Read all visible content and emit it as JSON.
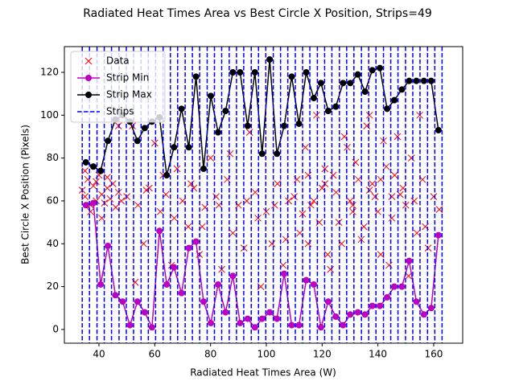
{
  "chart_data": {
    "type": "scatter",
    "title": "Radiated Heat Times Area vs Best Circle X Position, Strips=49",
    "x_label": "Radiated Heat Times Area (W)",
    "y_label": "Best Circle X Position (Pixels)",
    "xlim": [
      27.6,
      170.4
    ],
    "ylim": [
      -6.4,
      132
    ],
    "xticks": [
      40,
      60,
      80,
      100,
      120,
      140,
      160
    ],
    "yticks": [
      0,
      20,
      40,
      60,
      80,
      100,
      120
    ],
    "legend": "upper left",
    "series": [
      {
        "name": "Data",
        "color": "#ff0000",
        "marker": "x",
        "line": "none",
        "x": [
          34,
          35,
          36,
          37,
          38,
          39,
          40,
          41,
          42,
          43,
          44,
          45,
          46,
          47,
          48,
          35,
          37,
          39,
          41,
          43,
          50,
          52,
          54,
          56,
          58,
          60,
          62,
          64,
          66,
          68,
          70,
          72,
          74,
          76,
          78,
          80,
          82,
          84,
          86,
          88,
          90,
          92,
          94,
          96,
          98,
          100,
          102,
          104,
          106,
          108,
          110,
          112,
          114,
          116,
          118,
          120,
          122,
          124,
          126,
          128,
          130,
          132,
          134,
          136,
          138,
          140,
          142,
          144,
          146,
          148,
          150,
          152,
          154,
          156,
          158,
          160,
          162,
          119,
          121,
          123,
          125,
          127,
          129,
          131,
          133,
          135,
          137,
          139,
          141,
          143,
          145,
          147,
          149,
          151,
          153,
          155,
          157,
          117,
          115,
          113,
          47,
          53,
          57,
          63,
          67,
          73,
          77,
          83,
          87,
          93,
          97,
          103,
          107,
          111,
          115,
          121,
          131,
          137,
          141,
          145
        ],
        "values": [
          65,
          62,
          70,
          58,
          67,
          60,
          72,
          63,
          59,
          66,
          61,
          68,
          57,
          64,
          60,
          74,
          55,
          69,
          52,
          71,
          62,
          95,
          58,
          40,
          66,
          87,
          55,
          63,
          30,
          75,
          60,
          48,
          66,
          35,
          57,
          80,
          62,
          28,
          70,
          45,
          58,
          38,
          92,
          64,
          20,
          55,
          40,
          68,
          30,
          60,
          62,
          45,
          85,
          58,
          100,
          66,
          35,
          72,
          50,
          90,
          60,
          78,
          42,
          95,
          68,
          55,
          88,
          30,
          72,
          63,
          58,
          80,
          45,
          70,
          38,
          62,
          56,
          50,
          75,
          28,
          64,
          40,
          85,
          55,
          70,
          48,
          100,
          62,
          35,
          76,
          52,
          90,
          66,
          25,
          60,
          100,
          48,
          60,
          72,
          54,
          95,
          22,
          65,
          72,
          52,
          68,
          48,
          58,
          82,
          60,
          52,
          58,
          42,
          70,
          40,
          68,
          58,
          65,
          70,
          62
        ]
      },
      {
        "name": "Strip Min",
        "color": "#bf00bf",
        "marker": "o",
        "line": "solid",
        "x": [
          35.3,
          38.0,
          40.6,
          43.2,
          45.9,
          48.5,
          51.1,
          53.8,
          56.4,
          59.0,
          61.7,
          64.3,
          66.9,
          69.6,
          72.2,
          74.8,
          77.5,
          80.1,
          82.7,
          85.4,
          88.0,
          90.6,
          93.3,
          95.9,
          98.5,
          101.2,
          103.8,
          106.4,
          109.1,
          111.7,
          114.3,
          117.0,
          119.6,
          122.2,
          124.9,
          127.5,
          130.1,
          132.8,
          135.4,
          138.0,
          140.7,
          143.3,
          145.9,
          148.6,
          151.2,
          153.8,
          156.5,
          159.1,
          161.7
        ],
        "values": [
          58,
          59,
          21,
          39,
          16,
          13,
          2,
          13,
          8,
          1,
          46,
          21,
          29,
          17,
          38,
          41,
          13,
          3,
          21,
          8,
          25,
          3,
          5,
          1,
          5,
          8,
          5,
          26,
          2,
          2,
          23,
          21,
          1,
          13,
          6,
          2,
          7,
          8,
          7,
          11,
          11,
          15,
          20,
          20,
          32,
          13,
          7,
          10,
          44
        ]
      },
      {
        "name": "Strip Max",
        "color": "#000000",
        "marker": "o",
        "line": "solid",
        "x": [
          35.3,
          38.0,
          40.6,
          43.2,
          45.9,
          48.5,
          51.1,
          53.8,
          56.4,
          59.0,
          61.7,
          64.3,
          66.9,
          69.6,
          72.2,
          74.8,
          77.5,
          80.1,
          82.7,
          85.4,
          88.0,
          90.6,
          93.3,
          95.9,
          98.5,
          101.2,
          103.8,
          106.4,
          109.1,
          111.7,
          114.3,
          117.0,
          119.6,
          122.2,
          124.9,
          127.5,
          130.1,
          132.8,
          135.4,
          138.0,
          140.7,
          143.3,
          145.9,
          148.6,
          151.2,
          153.8,
          156.5,
          159.1,
          161.7
        ],
        "values": [
          78,
          76,
          74,
          88,
          98,
          100,
          97,
          88,
          94,
          97,
          99,
          72,
          85,
          103,
          85,
          118,
          75,
          109,
          92,
          102,
          120,
          120,
          95,
          120,
          82,
          126,
          82,
          95,
          118,
          96,
          120,
          108,
          115,
          102,
          104,
          115,
          115,
          119,
          111,
          121,
          122,
          103,
          107,
          112,
          116,
          116,
          116,
          116,
          93
        ]
      },
      {
        "name": "Strips",
        "color": "#0000ff",
        "marker": "none",
        "line": "dashed",
        "vertical": true,
        "x": [
          34.0,
          36.6,
          39.3,
          41.9,
          44.5,
          47.2,
          49.8,
          52.4,
          55.1,
          57.7,
          60.3,
          63.0,
          65.6,
          68.2,
          70.9,
          73.5,
          76.1,
          78.8,
          81.4,
          84.0,
          86.7,
          89.3,
          91.9,
          94.6,
          97.2,
          99.8,
          102.5,
          105.1,
          107.7,
          110.4,
          113.0,
          115.6,
          118.3,
          120.9,
          123.5,
          126.2,
          128.8,
          131.4,
          134.1,
          136.7,
          139.3,
          142.0,
          144.6,
          147.2,
          149.9,
          152.5,
          155.1,
          157.8,
          160.4,
          163.0
        ]
      }
    ]
  }
}
